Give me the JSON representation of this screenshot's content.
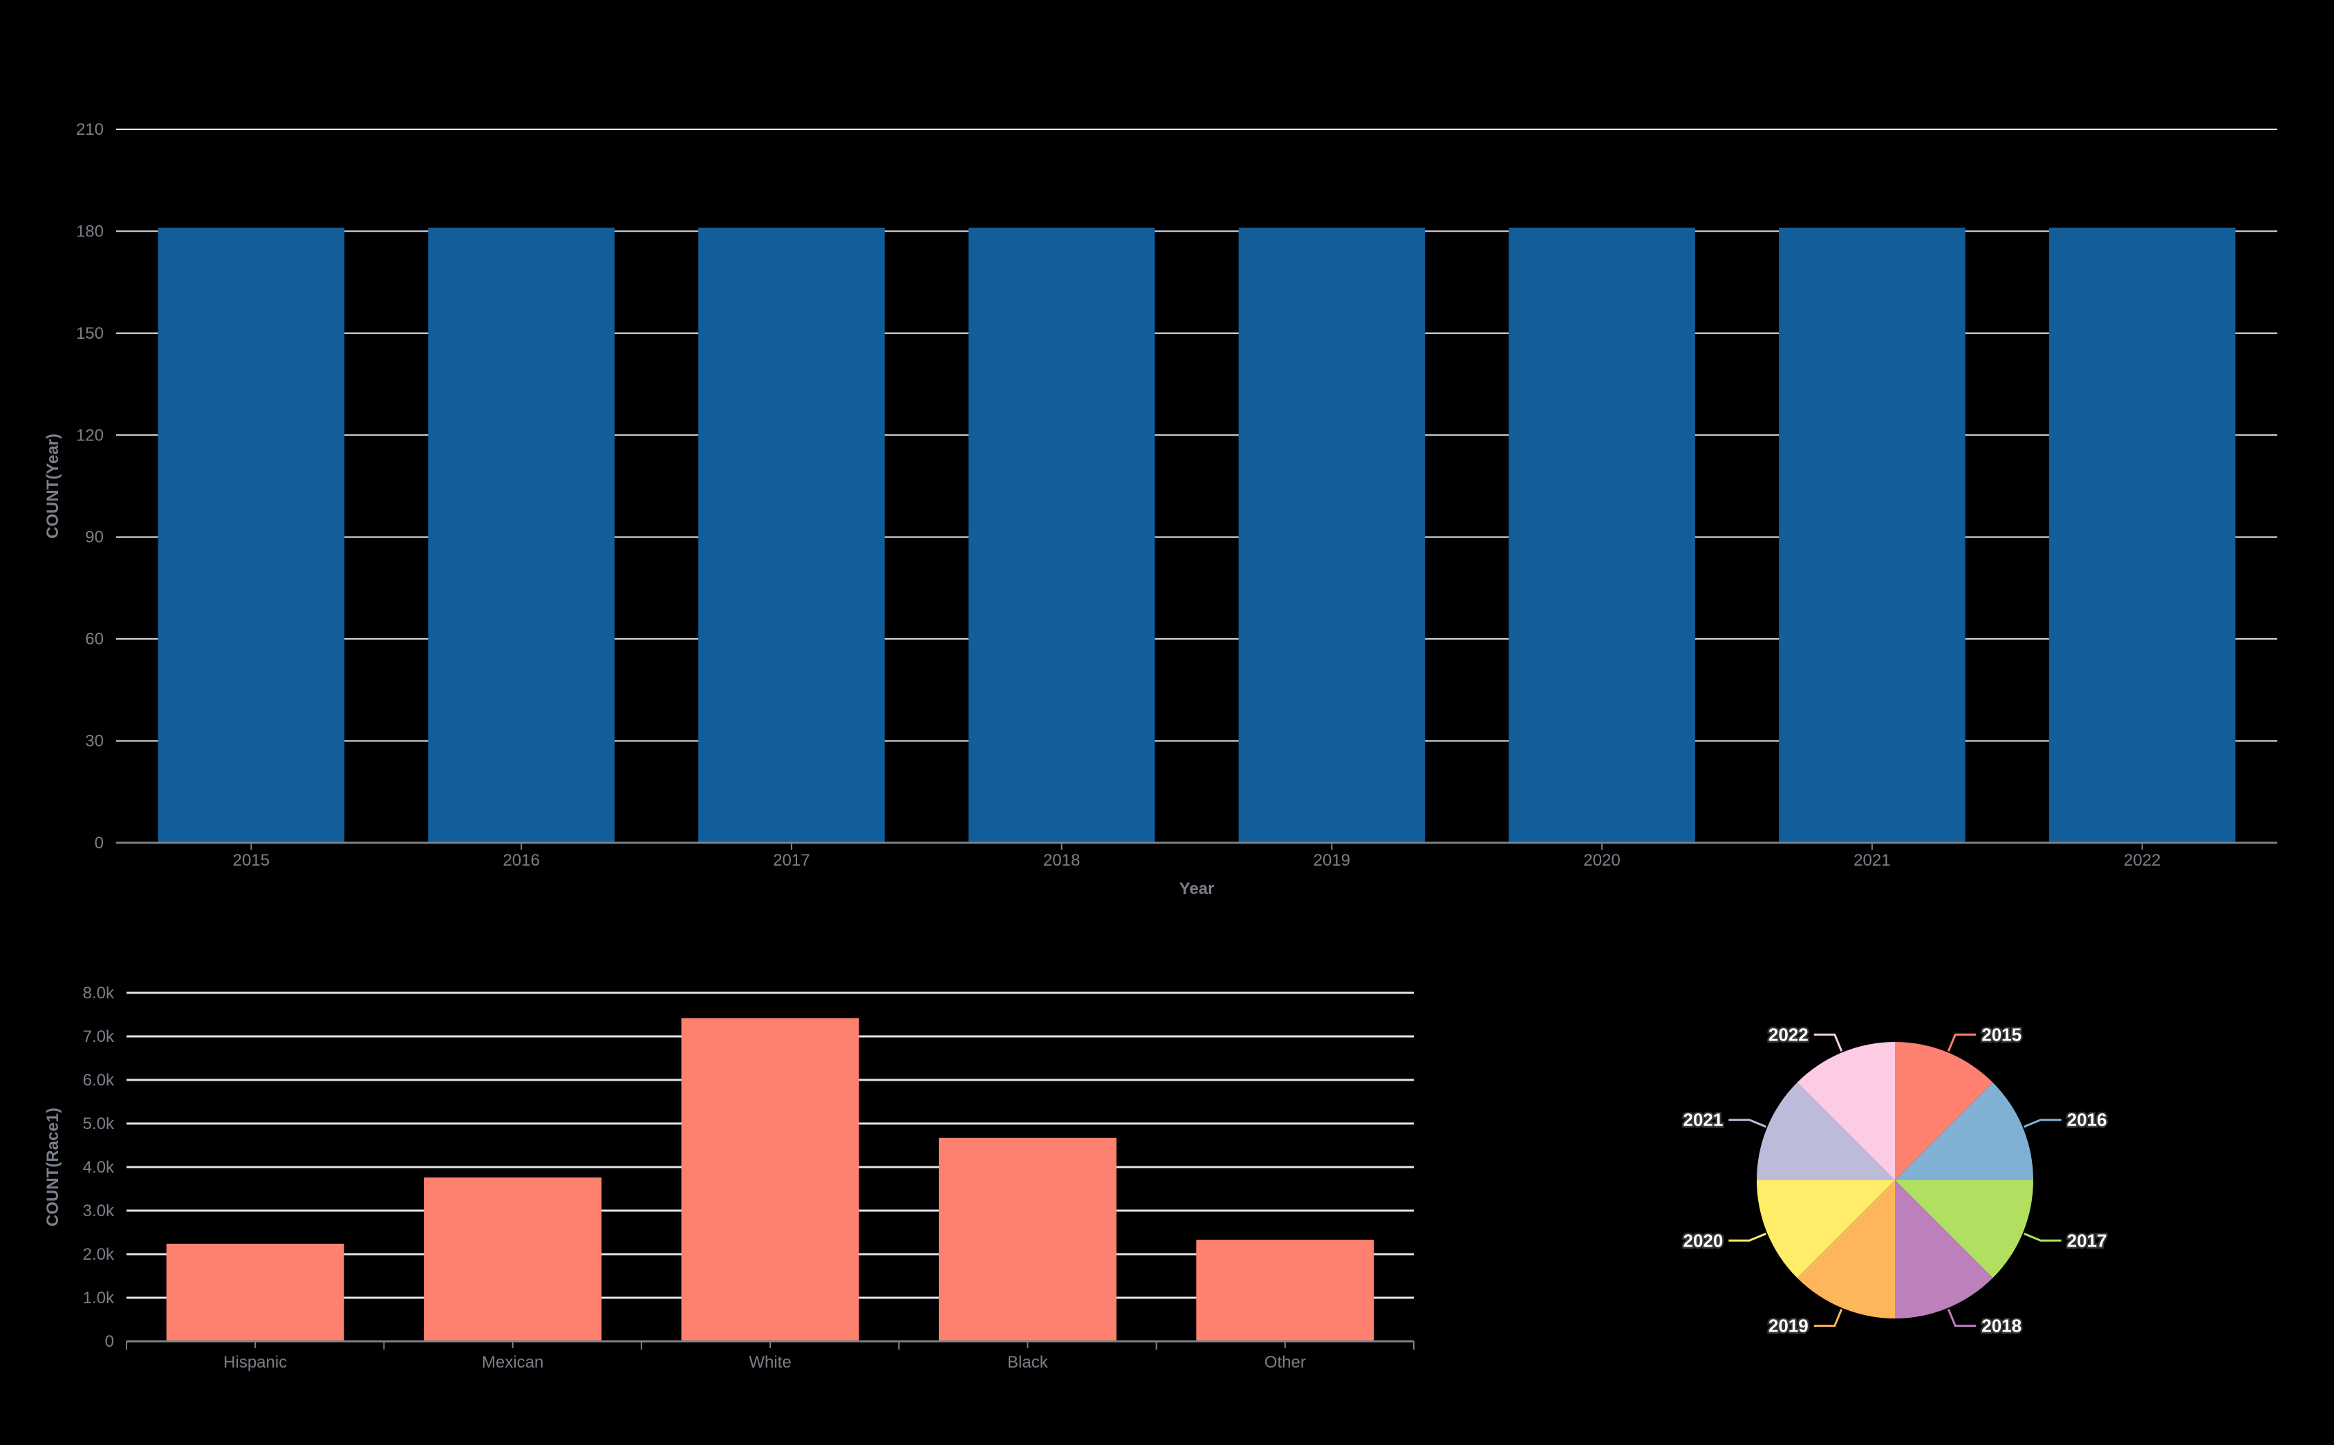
{
  "chart_data": [
    {
      "type": "bar",
      "title": "",
      "xlabel": "Year",
      "ylabel": "COUNT(Year)",
      "categories": [
        "2015",
        "2016",
        "2017",
        "2018",
        "2019",
        "2020",
        "2021",
        "2022"
      ],
      "values": [
        181,
        181,
        181,
        181,
        181,
        181,
        181,
        181
      ],
      "yticks": [
        "0",
        "30",
        "60",
        "90",
        "120",
        "150",
        "180",
        "210"
      ],
      "ylim": [
        0,
        210
      ],
      "grid": true,
      "color": "#115e9a"
    },
    {
      "type": "bar",
      "title": "",
      "xlabel": "",
      "ylabel": "COUNT(Race1)",
      "categories": [
        "Hispanic",
        "Mexican",
        "White",
        "Black",
        "Other"
      ],
      "values": [
        2240,
        3760,
        7420,
        4670,
        2330
      ],
      "yticks": [
        "0",
        "1.0k",
        "2.0k",
        "3.0k",
        "4.0k",
        "5.0k",
        "6.0k",
        "7.0k",
        "8.0k"
      ],
      "ylim": [
        0,
        8000
      ],
      "grid": true,
      "color": "#fe8170"
    },
    {
      "type": "pie",
      "title": "",
      "categories": [
        "2015",
        "2016",
        "2017",
        "2018",
        "2019",
        "2020",
        "2021",
        "2022"
      ],
      "values": [
        181,
        181,
        181,
        181,
        181,
        181,
        181,
        181
      ],
      "colors": [
        "#fd8070",
        "#80b0d4",
        "#b2df5f",
        "#bc80bc",
        "#feb65a",
        "#ffec68",
        "#bdbbda",
        "#fdcce4"
      ],
      "legend": "none"
    }
  ]
}
